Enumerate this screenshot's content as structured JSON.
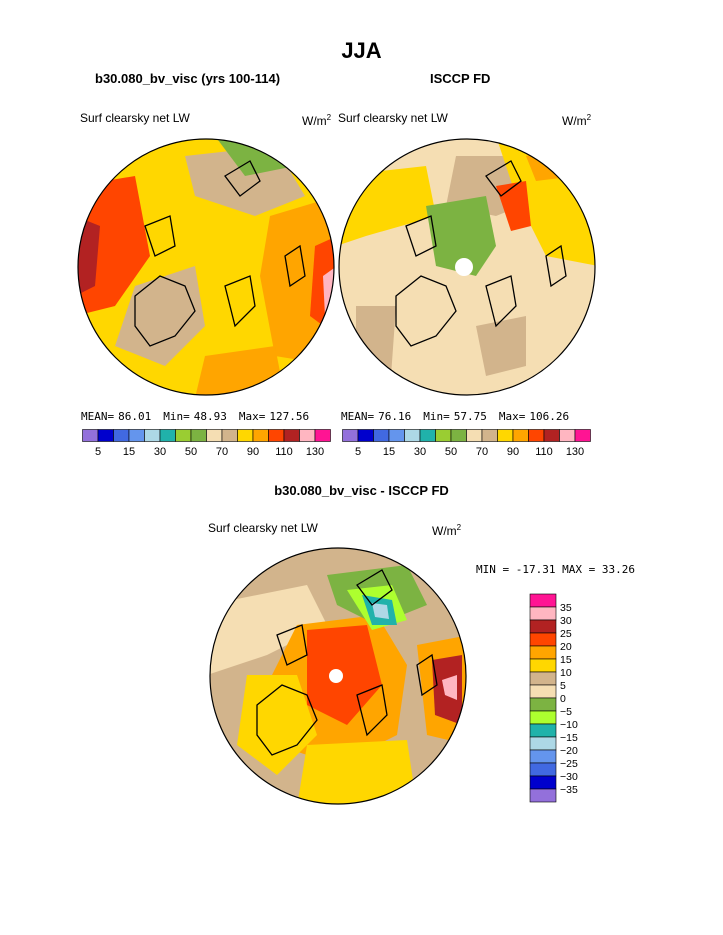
{
  "page_title": "JJA",
  "panels": [
    {
      "title": "b30.080_bv_visc (yrs 100-114)",
      "field_label": "Surf clearsky net LW",
      "units": "W/m",
      "units_exp": "2",
      "mean_label": "MEAN=",
      "mean_value": "86.01",
      "min_label": "Min=",
      "min_value": "48.93",
      "max_label": "Max=",
      "max_value": "127.56"
    },
    {
      "title": "ISCCP FD",
      "field_label": "Surf clearsky net LW",
      "units": "W/m",
      "units_exp": "2",
      "mean_label": "MEAN=",
      "mean_value": "76.16",
      "min_label": "Min=",
      "min_value": "57.75",
      "max_label": "Max=",
      "max_value": "106.26"
    }
  ],
  "diff_panel": {
    "title": "b30.080_bv_visc - ISCCP FD",
    "field_label": "Surf clearsky net LW",
    "units": "W/m",
    "units_exp": "2",
    "minmax_text": "MIN = -17.31 MAX =  33.26"
  },
  "colors": {
    "abs_scale": [
      "#9370db",
      "#0000cd",
      "#4169e1",
      "#6495ed",
      "#add8e6",
      "#20b2aa",
      "#9acd32",
      "#7cb342",
      "#f5deb3",
      "#d2b48c",
      "#ffd700",
      "#ffa500",
      "#ff4500",
      "#b22222",
      "#ffb6c1",
      "#ff1493"
    ],
    "diff_scale": [
      "#9370db",
      "#0000cd",
      "#4169e1",
      "#6495ed",
      "#add8e6",
      "#20b2aa",
      "#adff2f",
      "#7cb342",
      "#f5deb3",
      "#d2b48c",
      "#ffd700",
      "#ffa500",
      "#ff4500",
      "#b22222",
      "#ffb6c1",
      "#ff1493"
    ]
  },
  "chart_data": [
    {
      "type": "heatmap",
      "projection": "north polar stereographic",
      "title": "b30.080_bv_visc (yrs 100-114)",
      "field": "Surf clearsky net LW",
      "units": "W/m2",
      "stats": {
        "mean": 86.01,
        "min": 48.93,
        "max": 127.56
      },
      "colorbar_levels": [
        5,
        10,
        15,
        20,
        30,
        40,
        50,
        60,
        70,
        80,
        90,
        100,
        110,
        120,
        130
      ],
      "colorbar_tick_labels": [
        "5",
        "15",
        "30",
        "50",
        "70",
        "90",
        "110",
        "130"
      ]
    },
    {
      "type": "heatmap",
      "projection": "north polar stereographic",
      "title": "ISCCP FD",
      "field": "Surf clearsky net LW",
      "units": "W/m2",
      "stats": {
        "mean": 76.16,
        "min": 57.75,
        "max": 106.26
      },
      "colorbar_levels": [
        5,
        10,
        15,
        20,
        30,
        40,
        50,
        60,
        70,
        80,
        90,
        100,
        110,
        120,
        130
      ],
      "colorbar_tick_labels": [
        "5",
        "15",
        "30",
        "50",
        "70",
        "90",
        "110",
        "130"
      ]
    },
    {
      "type": "heatmap",
      "projection": "north polar stereographic",
      "title": "b30.080_bv_visc - ISCCP FD",
      "field": "Surf clearsky net LW",
      "units": "W/m2",
      "stats": {
        "min": -17.31,
        "max": 33.26
      },
      "colorbar_tick_labels": [
        "35",
        "30",
        "25",
        "20",
        "15",
        "10",
        "5",
        "0",
        "−5",
        "−10",
        "−15",
        "−20",
        "−25",
        "−30",
        "−35"
      ]
    }
  ]
}
